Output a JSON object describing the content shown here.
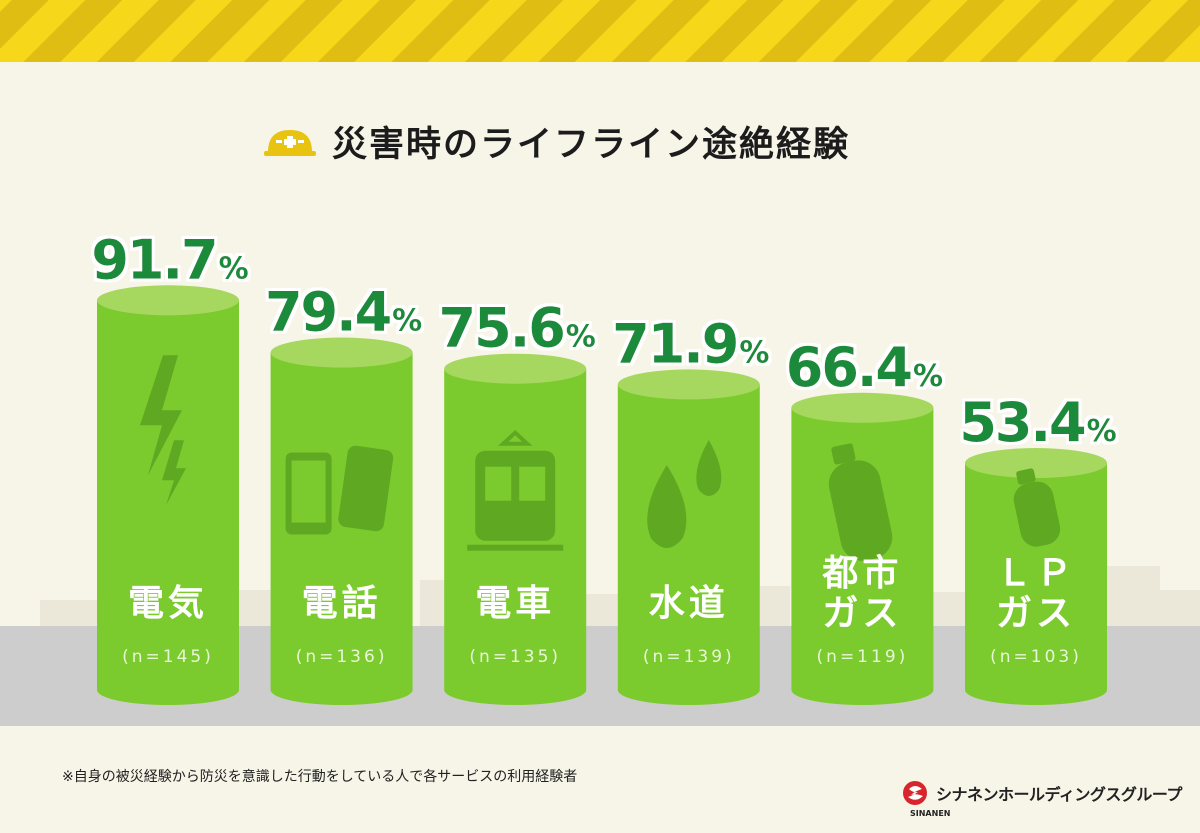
{
  "title": "災害時のライフライン途絶経験",
  "footnote": "※自身の被災経験から防災を意識した行動をしている人で各サービスの利用経験者",
  "brand": {
    "name": "シナネンホールディングスグループ",
    "sub": "SINANEN"
  },
  "colors": {
    "accent": "#1a8a3a",
    "bar": "#7ccb2e",
    "bar_top": "#a6d860",
    "stripe": "#f6d71a"
  },
  "chart_data": {
    "type": "bar",
    "title": "災害時のライフライン途絶経験",
    "unit": "%",
    "categories": [
      {
        "name": "電気",
        "lines": [
          "電気"
        ],
        "n": "(n=145)",
        "icon": "lightning-icon"
      },
      {
        "name": "電話",
        "lines": [
          "電話"
        ],
        "n": "(n=136)",
        "icon": "phone-icon"
      },
      {
        "name": "電車",
        "lines": [
          "電車"
        ],
        "n": "(n=135)",
        "icon": "train-icon"
      },
      {
        "name": "水道",
        "lines": [
          "水道"
        ],
        "n": "(n=139)",
        "icon": "water-drop-icon"
      },
      {
        "name": "都市ガス",
        "lines": [
          "都市",
          "ガス"
        ],
        "n": "(n=119)",
        "icon": "gas-cylinder-icon"
      },
      {
        "name": "LPガス",
        "lines": [
          "ＬＰ",
          "ガス"
        ],
        "n": "(n=103)",
        "icon": "lp-gas-cylinder-icon"
      }
    ],
    "values": [
      91.7,
      79.4,
      75.6,
      71.9,
      66.4,
      53.4
    ],
    "value_labels": [
      "91.7",
      "79.4",
      "75.6",
      "71.9",
      "66.4",
      "53.4"
    ],
    "ylim": [
      0,
      100
    ]
  }
}
